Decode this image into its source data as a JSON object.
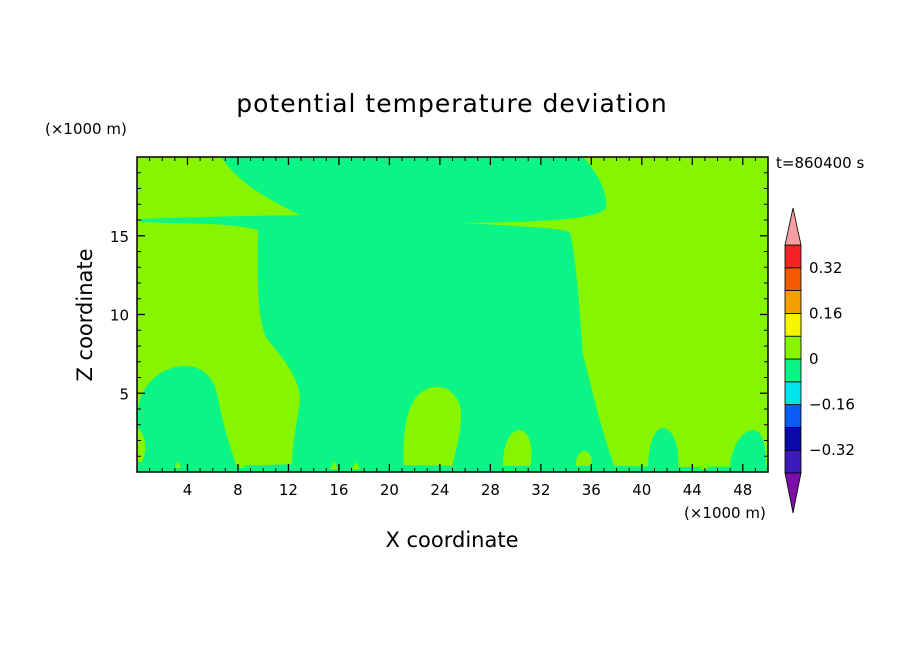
{
  "chart_data": {
    "type": "contour",
    "title": "potential temperature deviation",
    "time_label": "t=860400 s",
    "x_axis": {
      "label": "X coordinate",
      "unit": "(×1000 m)",
      "range": [
        0,
        50
      ],
      "ticks": [
        4,
        8,
        12,
        16,
        20,
        24,
        28,
        32,
        36,
        40,
        44,
        48
      ]
    },
    "y_axis": {
      "label": "Z coordinate",
      "unit": "(×1000 m)",
      "range": [
        0,
        20
      ],
      "ticks": [
        5,
        10,
        15
      ]
    },
    "colorbar": {
      "levels": [
        -0.48,
        -0.4,
        -0.32,
        -0.24,
        -0.16,
        -0.08,
        0,
        0.08,
        0.16,
        0.24,
        0.32,
        0.4,
        0.48
      ],
      "labeled_levels": [
        -0.32,
        -0.16,
        0,
        0.16,
        0.32
      ],
      "labels": [
        "0.32",
        "0.16",
        "0",
        "−0.16",
        "−0.32"
      ],
      "colors": [
        "#7b0fa8",
        "#3a1ab8",
        "#0a0aa8",
        "#0a5cf5",
        "#00e6ee",
        "#0af585",
        "#88f500",
        "#f5f500",
        "#f5a000",
        "#f55a00",
        "#f52323",
        "#f5a0a0"
      ]
    },
    "background_band": "0 to 0.08",
    "region_band": "-0.08 to 0",
    "colors": {
      "positive_small": "#88f500",
      "negative_small": "#0af585"
    }
  }
}
